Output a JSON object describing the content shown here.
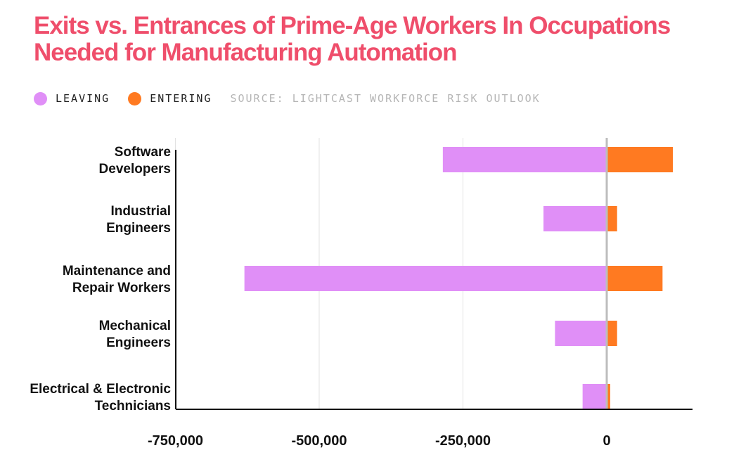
{
  "title": "Exits vs. Entrances of Prime-Age Workers In Occupations Needed for Manufacturing Automation",
  "legend": {
    "leaving_label": "LEAVING",
    "entering_label": "ENTERING",
    "source": "SOURCE: LIGHTCAST WORKFORCE RISK OUTLOOK"
  },
  "colors": {
    "leaving": "#e08ff7",
    "entering": "#ff7a21",
    "title": "#ef4e6b"
  },
  "chart_data": {
    "type": "bar",
    "orientation": "horizontal",
    "categories": [
      [
        "Software",
        "Developers"
      ],
      [
        "Industrial",
        "Engineers"
      ],
      [
        "Maintenance and",
        "Repair Workers"
      ],
      [
        "Mechanical",
        "Engineers"
      ],
      [
        "Electrical & Electronic",
        "Technicians"
      ]
    ],
    "series": [
      {
        "name": "LEAVING",
        "values": [
          -285000,
          -110000,
          -630000,
          -90000,
          -42000
        ]
      },
      {
        "name": "ENTERING",
        "values": [
          115000,
          18000,
          97000,
          18000,
          6000
        ]
      }
    ],
    "xlim": [
      -750000,
      150000
    ],
    "xticks": [
      -750000,
      -500000,
      -250000,
      0
    ],
    "xtick_labels": [
      "-750,000",
      "-500,000",
      "-250,000",
      "0"
    ],
    "grid": true,
    "legend_position": "top-left"
  }
}
